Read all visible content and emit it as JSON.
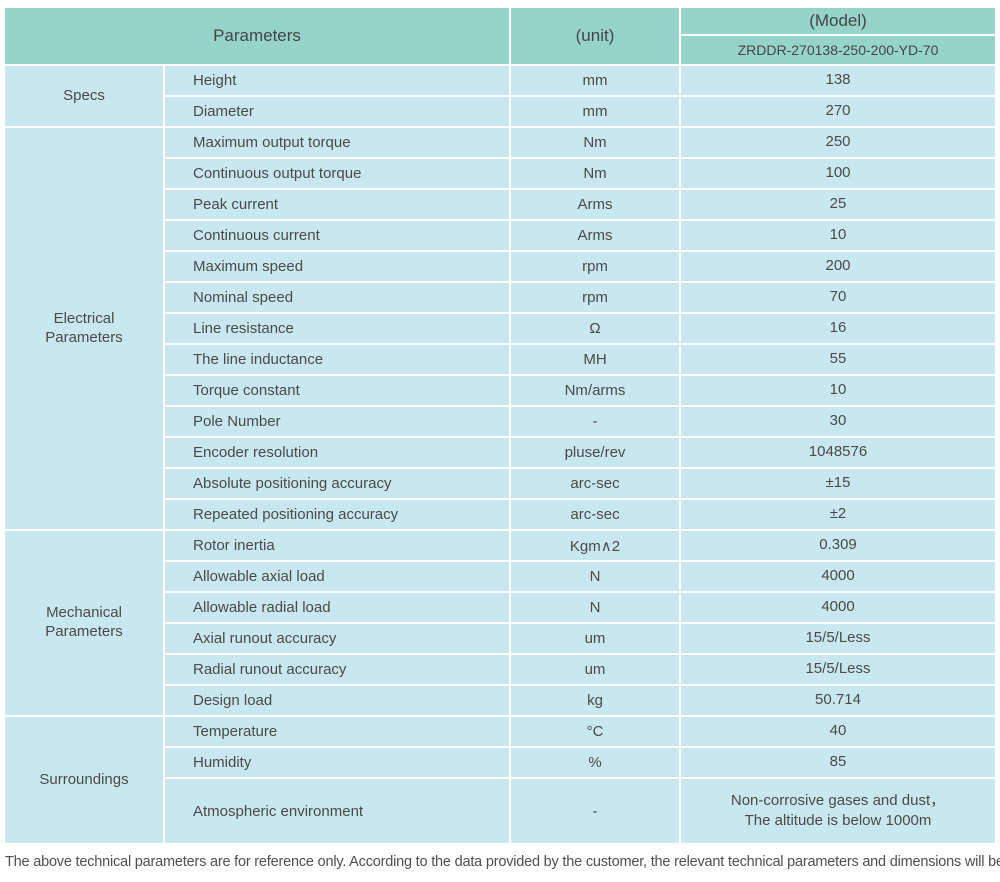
{
  "colors": {
    "header_bg": "#96d4cb",
    "row_bg": "#c9e7ee",
    "text": "#4a4a4a"
  },
  "header": {
    "parameters_label": "Parameters",
    "unit_label": "(unit)",
    "model_label": "(Model)",
    "model_value": "ZRDDR-270138-250-200-YD-70"
  },
  "groups": [
    {
      "label": "Specs",
      "rows": [
        {
          "parameter": "Height",
          "unit": "mm",
          "value": "138"
        },
        {
          "parameter": "Diameter",
          "unit": "mm",
          "value": "270"
        }
      ]
    },
    {
      "label": "Electrical Parameters",
      "rows": [
        {
          "parameter": "Maximum output torque",
          "unit": "Nm",
          "value": "250"
        },
        {
          "parameter": "Continuous output torque",
          "unit": "Nm",
          "value": "100"
        },
        {
          "parameter": "Peak current",
          "unit": "Arms",
          "value": "25"
        },
        {
          "parameter": "Continuous current",
          "unit": "Arms",
          "value": "10"
        },
        {
          "parameter": "Maximum speed",
          "unit": "rpm",
          "value": "200"
        },
        {
          "parameter": "Nominal speed",
          "unit": "rpm",
          "value": "70"
        },
        {
          "parameter": "Line resistance",
          "unit": "Ω",
          "value": "16"
        },
        {
          "parameter": "The line inductance",
          "unit": "MH",
          "value": "55"
        },
        {
          "parameter": "Torque constant",
          "unit": "Nm/arms",
          "value": "10"
        },
        {
          "parameter": "Pole Number",
          "unit": "-",
          "value": "30"
        },
        {
          "parameter": "Encoder resolution",
          "unit": "pluse/rev",
          "value": "1048576"
        },
        {
          "parameter": "Absolute positioning accuracy",
          "unit": "arc-sec",
          "value": "±15"
        },
        {
          "parameter": "Repeated positioning accuracy",
          "unit": "arc-sec",
          "value": "±2"
        }
      ]
    },
    {
      "label": "Mechanical Parameters",
      "rows": [
        {
          "parameter": "Rotor inertia",
          "unit": "Kgm∧2",
          "value": "0.309"
        },
        {
          "parameter": "Allowable axial load",
          "unit": "N",
          "value": "4000"
        },
        {
          "parameter": "Allowable radial load",
          "unit": "N",
          "value": "4000"
        },
        {
          "parameter": "Axial runout accuracy",
          "unit": "um",
          "value": "15/5/Less"
        },
        {
          "parameter": "Radial runout accuracy",
          "unit": "um",
          "value": "15/5/Less"
        },
        {
          "parameter": "Design load",
          "unit": "kg",
          "value": "50.714"
        }
      ]
    },
    {
      "label": "Surroundings",
      "rows": [
        {
          "parameter": "Temperature",
          "unit": "°C",
          "value": "40"
        },
        {
          "parameter": "Humidity",
          "unit": "%",
          "value": "85"
        },
        {
          "parameter": "Atmospheric environment",
          "unit": "-",
          "value": "Non-corrosive gases and dust，\nThe altitude is below 1000m",
          "tall": true
        }
      ]
    }
  ],
  "footer": {
    "note": "The above technical parameters are for reference only. According to the data provided by the customer, the relevant technical parameters and dimensions will be issued."
  }
}
